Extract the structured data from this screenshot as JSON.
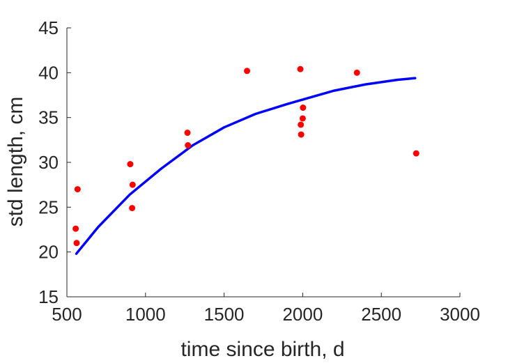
{
  "chart_data": {
    "type": "scatter",
    "title": "",
    "xlabel": "time since birth, d",
    "ylabel": "std length, cm",
    "xlim": [
      500,
      3000
    ],
    "ylim": [
      15,
      45
    ],
    "x_ticks": [
      500,
      1000,
      1500,
      2000,
      2500,
      3000
    ],
    "y_ticks": [
      15,
      20,
      25,
      30,
      35,
      40,
      45
    ],
    "grid": false,
    "legend": "none",
    "series": [
      {
        "type": "scatter",
        "color": "#ff0000",
        "points": [
          [
            556,
            22.6
          ],
          [
            562,
            21.0
          ],
          [
            568,
            27.0
          ],
          [
            903,
            29.8
          ],
          [
            915,
            24.9
          ],
          [
            918,
            27.5
          ],
          [
            1267,
            33.3
          ],
          [
            1270,
            31.9
          ],
          [
            1646,
            40.2
          ],
          [
            1985,
            40.4
          ],
          [
            1988,
            34.2
          ],
          [
            1990,
            33.1
          ],
          [
            2000,
            34.9
          ],
          [
            2002,
            36.1
          ],
          [
            2345,
            40.0
          ],
          [
            2722,
            31.0
          ]
        ]
      },
      {
        "type": "line",
        "color": "#0000ff",
        "points": [
          [
            560,
            19.8
          ],
          [
            700,
            22.8
          ],
          [
            900,
            26.4
          ],
          [
            1100,
            29.3
          ],
          [
            1300,
            31.9
          ],
          [
            1500,
            33.9
          ],
          [
            1700,
            35.4
          ],
          [
            1900,
            36.5
          ],
          [
            2000,
            37.0
          ],
          [
            2200,
            38.0
          ],
          [
            2400,
            38.7
          ],
          [
            2600,
            39.2
          ],
          [
            2715,
            39.4
          ]
        ]
      }
    ]
  }
}
